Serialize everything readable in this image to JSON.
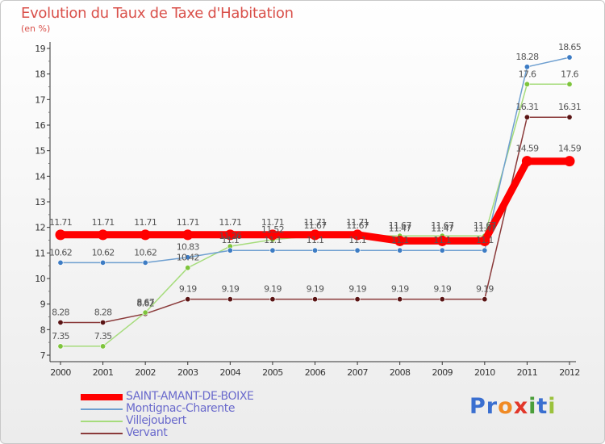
{
  "title": "Evolution du Taux de Taxe d'Habitation",
  "unit": "(en %)",
  "brand": {
    "letters": [
      {
        "ch": "P",
        "color": "#3a6fd0"
      },
      {
        "ch": "r",
        "color": "#3a6fd0"
      },
      {
        "ch": "o",
        "color": "#f08a24"
      },
      {
        "ch": "x",
        "color": "#e2372a"
      },
      {
        "ch": "i",
        "color": "#4a9e3a"
      },
      {
        "ch": "t",
        "color": "#3a6fd0"
      },
      {
        "ch": "i",
        "color": "#9bc23c"
      }
    ]
  },
  "chart_data": {
    "type": "line",
    "title": "Evolution du Taux de Taxe d'Habitation",
    "ylabel": "(en %)",
    "xlabel": "",
    "ylim": [
      7,
      19
    ],
    "yticks": [
      7,
      8,
      9,
      10,
      11,
      12,
      13,
      14,
      15,
      16,
      17,
      18,
      19
    ],
    "categories": [
      "2000",
      "2001",
      "2002",
      "2003",
      "2004",
      "2005",
      "2006",
      "2007",
      "2008",
      "2009",
      "2010",
      "2011",
      "2012"
    ],
    "grid": false,
    "legend": "bottom-left",
    "series": [
      {
        "name": "SAINT-AMANT-DE-BOIXE",
        "color": "#ff0000",
        "width": 9,
        "values": [
          11.71,
          11.71,
          11.71,
          11.71,
          11.71,
          11.71,
          11.71,
          11.71,
          11.47,
          11.47,
          11.47,
          14.59,
          14.59
        ],
        "labels": [
          "11.71",
          "11.71",
          "11.71",
          "11.71",
          "11.71",
          "11.71",
          "11.71",
          "11.71",
          "11.47",
          "11.47",
          "11.47",
          "14.59",
          "14.59"
        ]
      },
      {
        "name": "Montignac-Charente",
        "color": "#6e9fd0",
        "marker": "#3d7cc4",
        "width": 1.5,
        "values": [
          10.62,
          10.62,
          10.62,
          10.83,
          11.1,
          11.1,
          11.1,
          11.1,
          11.1,
          11.1,
          11.1,
          18.28,
          18.65
        ],
        "labels": [
          "10.62",
          "10.62",
          "10.62",
          "10.83",
          "11.1",
          "11.1",
          "11.1",
          "11.1",
          "11.1",
          "11.1",
          "11.1",
          "18.28",
          "18.65"
        ]
      },
      {
        "name": "Villejoubert",
        "color": "#a6dc7c",
        "marker": "#7ec43c",
        "width": 1.5,
        "values": [
          7.35,
          7.35,
          8.67,
          10.42,
          11.26,
          11.52,
          11.67,
          11.67,
          11.67,
          11.67,
          11.67,
          17.6,
          17.6
        ],
        "labels": [
          "7.35",
          "7.35",
          "8.67",
          "10.42",
          "11.26",
          "11.52",
          "11.67",
          "11.67",
          "11.67",
          "11.67",
          "11.67",
          "17.6",
          "17.6"
        ]
      },
      {
        "name": "Vervant",
        "color": "#8a3a3a",
        "marker": "#5a1414",
        "width": 1.5,
        "values": [
          8.28,
          8.28,
          8.62,
          9.19,
          9.19,
          9.19,
          9.19,
          9.19,
          9.19,
          9.19,
          9.19,
          16.31,
          16.31
        ],
        "labels": [
          "8.28",
          "8.28",
          "8.62",
          "9.19",
          "9.19",
          "9.19",
          "9.19",
          "9.19",
          "9.19",
          "9.19",
          "9.19",
          "16.31",
          "16.31"
        ]
      }
    ]
  }
}
